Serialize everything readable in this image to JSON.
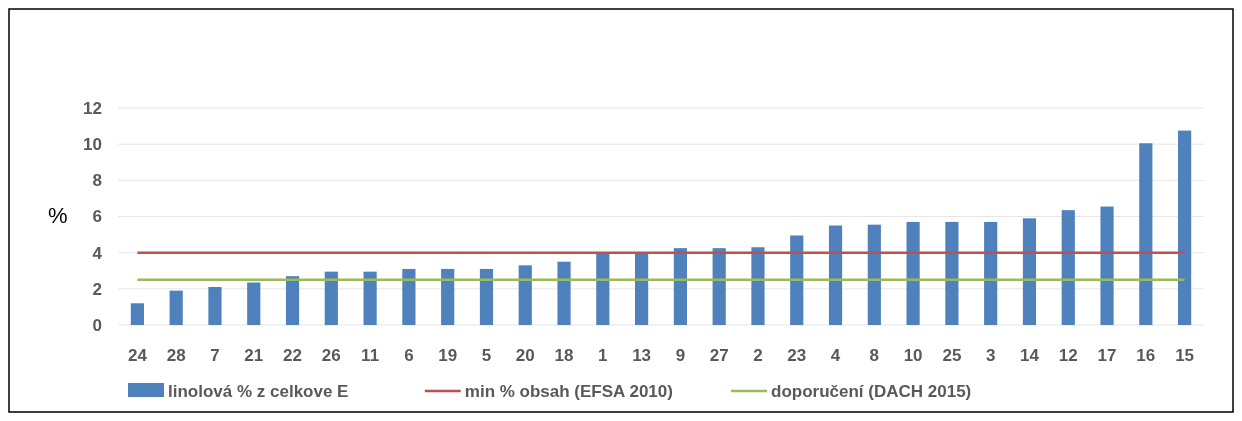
{
  "chart_data": {
    "type": "bar",
    "ylabel": "%",
    "categories": [
      "24",
      "28",
      "7",
      "21",
      "22",
      "26",
      "11",
      "6",
      "19",
      "5",
      "20",
      "18",
      "1",
      "13",
      "9",
      "27",
      "2",
      "23",
      "4",
      "8",
      "10",
      "25",
      "3",
      "14",
      "12",
      "17",
      "16",
      "15"
    ],
    "series": [
      {
        "name": "linolová % z celkove E",
        "color": "#4f81bd",
        "values": [
          1.2,
          1.9,
          2.1,
          2.35,
          2.7,
          2.95,
          2.95,
          3.1,
          3.1,
          3.1,
          3.3,
          3.5,
          4.0,
          4.0,
          4.25,
          4.25,
          4.3,
          4.95,
          5.5,
          5.55,
          5.7,
          5.7,
          5.7,
          5.9,
          6.35,
          6.55,
          10.05,
          10.75
        ]
      },
      {
        "name": "min % obsah (EFSA 2010)",
        "type": "line",
        "color": "#c0504d",
        "values": [
          4,
          4,
          4,
          4,
          4,
          4,
          4,
          4,
          4,
          4,
          4,
          4,
          4,
          4,
          4,
          4,
          4,
          4,
          4,
          4,
          4,
          4,
          4,
          4,
          4,
          4,
          4,
          4
        ]
      },
      {
        "name": "doporučení (DACH 2015)",
        "type": "line",
        "color": "#9bbb59",
        "values": [
          2.5,
          2.5,
          2.5,
          2.5,
          2.5,
          2.5,
          2.5,
          2.5,
          2.5,
          2.5,
          2.5,
          2.5,
          2.5,
          2.5,
          2.5,
          2.5,
          2.5,
          2.5,
          2.5,
          2.5,
          2.5,
          2.5,
          2.5,
          2.5,
          2.5,
          2.5,
          2.5,
          2.5
        ]
      }
    ],
    "ylim": [
      0,
      12
    ],
    "yticks": [
      0,
      2,
      4,
      6,
      8,
      10,
      12
    ],
    "grid": "y",
    "legend": "bottom"
  }
}
